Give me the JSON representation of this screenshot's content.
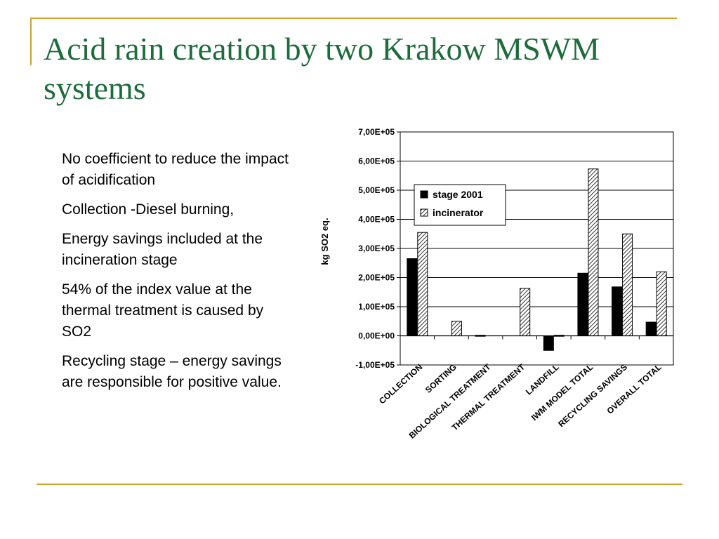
{
  "slide": {
    "title": "Acid rain creation by two Krakow MSWM systems",
    "bullets": [
      "No coefficient to reduce the impact of acidification",
      "Collection -Diesel burning,",
      "Energy savings included at the incineration stage",
      "54% of the index value at the thermal treatment is caused by SO2",
      "Recycling stage – energy savings are responsible for positive value."
    ]
  },
  "colors": {
    "title": "#1e6b3c",
    "rule": "#d4a12a",
    "series_stage": "#000000"
  },
  "chart_data": {
    "type": "bar",
    "title": "",
    "xlabel": "",
    "ylabel": "kg SO2 eq.",
    "ylim": [
      -100000,
      700000
    ],
    "ytick_values": [
      -100000,
      0,
      100000,
      200000,
      300000,
      400000,
      500000,
      600000,
      700000
    ],
    "ytick_labels": [
      "-1,00E+05",
      "0,00E+00",
      "1,00E+05",
      "2,00E+05",
      "3,00E+05",
      "4,00E+05",
      "5,00E+05",
      "6,00E+05",
      "7,00E+05"
    ],
    "categories": [
      "COLLECTION",
      "SORTING",
      "BIOLOGICAL TREATMENT",
      "THERMAL TREATMENT",
      "LANDFILL",
      "IWM MODEL TOTAL",
      "RECYCLING SAVINGS",
      "OVERALL TOTAL"
    ],
    "series": [
      {
        "name": "stage 2001",
        "pattern": "solid",
        "values": [
          265000,
          0,
          2000,
          0,
          -50000,
          215000,
          168000,
          47000
        ]
      },
      {
        "name": "incinerator",
        "pattern": "hatched",
        "values": [
          355000,
          50000,
          0,
          163000,
          2000,
          573000,
          350000,
          220000
        ]
      }
    ],
    "legend": "upper-left inside plot",
    "grid": true
  }
}
